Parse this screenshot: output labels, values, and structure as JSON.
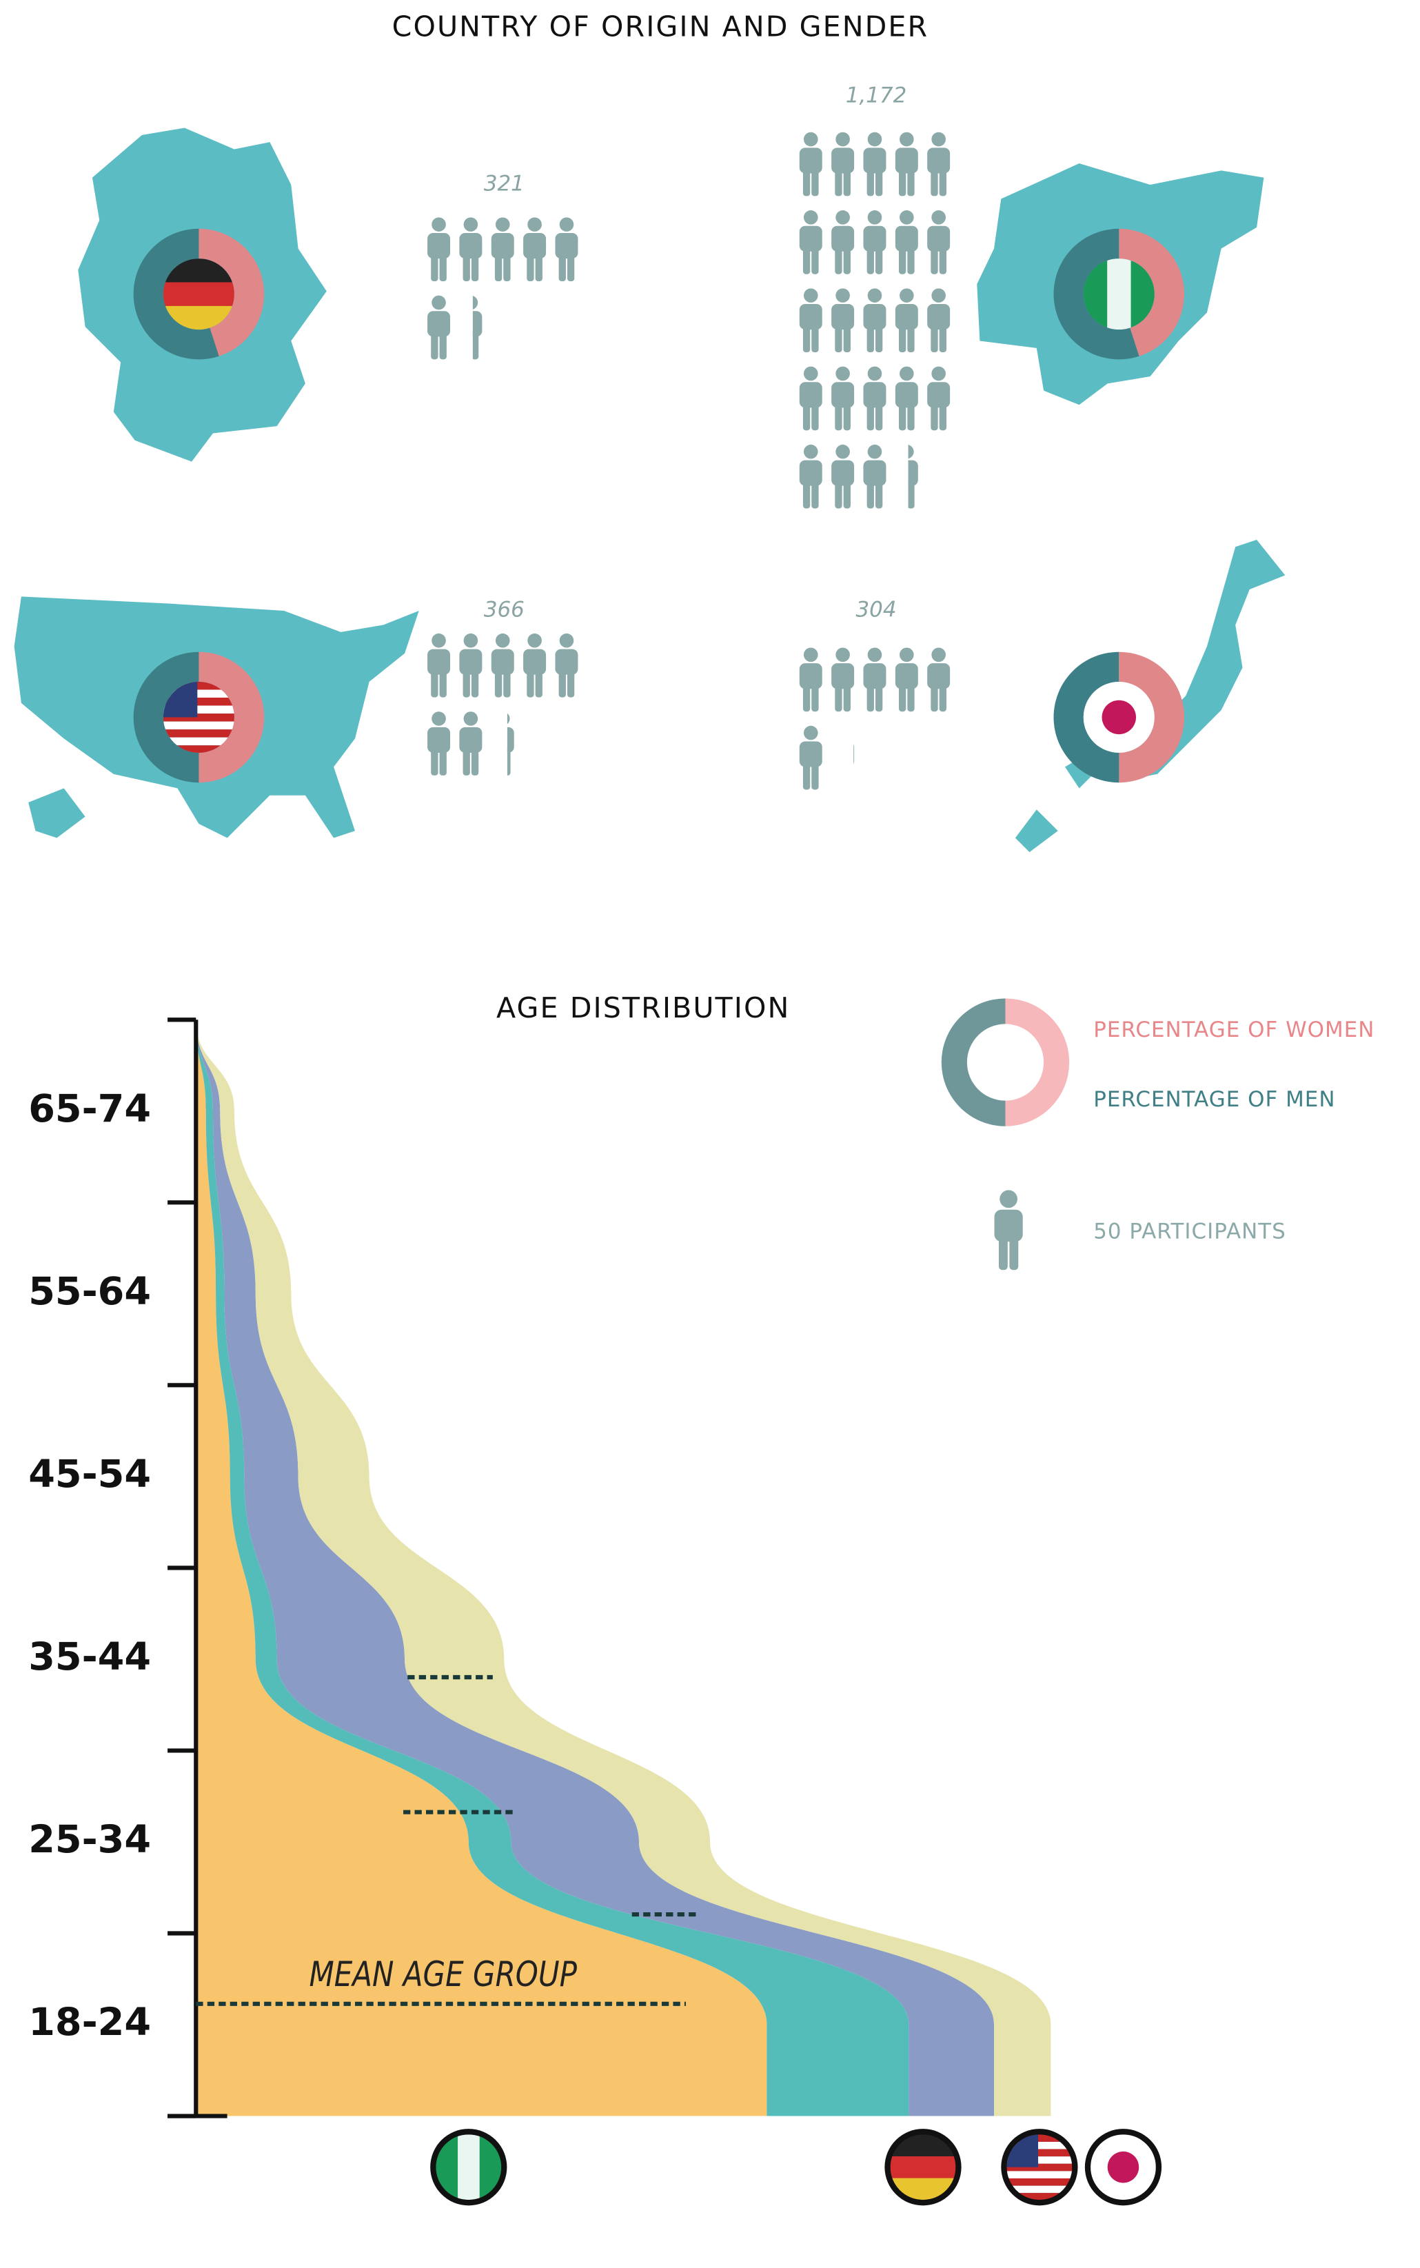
{
  "chart_data": [
    {
      "type": "pictogram",
      "title": "COUNTRY OF ORIGIN AND GENDER",
      "values": [
        321,
        1172,
        366,
        304
      ],
      "value_labels": [
        "321",
        "1,172",
        "366",
        "304"
      ],
      "women_percent": [
        45,
        45,
        50,
        50
      ],
      "unit": {
        "value": 50,
        "label": "50 PARTICIPANTS"
      },
      "women_label": "PERCENTAGE OF WOMEN",
      "men_label": "PERCENTAGE OF MEN",
      "women_color": "#e0878a",
      "men_color": "#3d7f86",
      "icon_color": "#8aa9a8"
    },
    {
      "type": "stream",
      "title": "AGE DISTRIBUTION",
      "categories": [
        "65-74",
        "55-64",
        "45-54",
        "35-44",
        "25-34",
        "18-24"
      ],
      "series": [
        {
          "color": "#f8c56c",
          "values": [
            7,
            14,
            24,
            42,
            192,
            402
          ]
        },
        {
          "color": "#55bdb9",
          "values": [
            5,
            6,
            10,
            15,
            30,
            100
          ]
        },
        {
          "color": "#8a9cc6",
          "values": [
            5,
            22,
            38,
            90,
            90,
            60
          ]
        },
        {
          "color": "#e6e3ad",
          "values": [
            10,
            25,
            50,
            70,
            50,
            40
          ]
        }
      ],
      "annotation": "MEAN AGE GROUP"
    }
  ]
}
